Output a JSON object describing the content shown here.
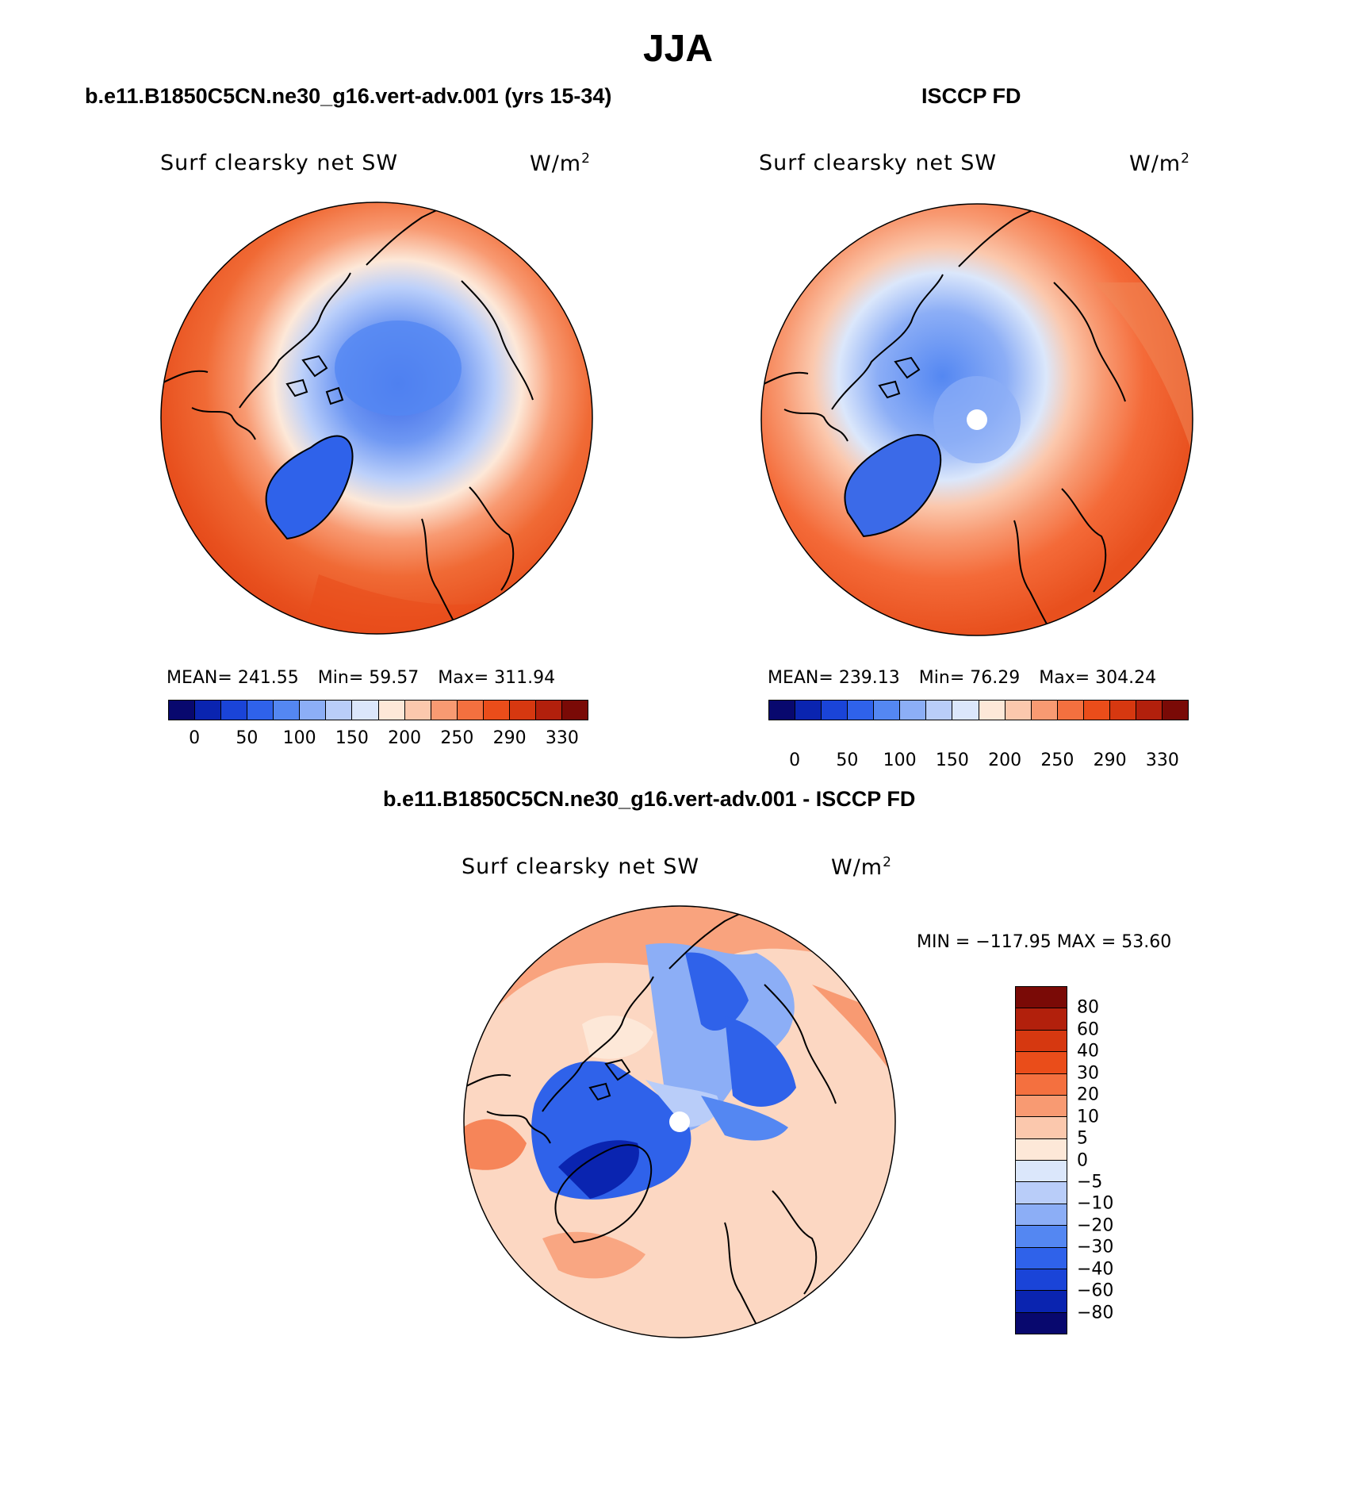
{
  "title": "JJA",
  "panels": {
    "model": {
      "title": "b.e11.B1850C5CN.ne30_g16.vert-adv.001 (yrs 15-34)",
      "variable": "Surf clearsky net SW",
      "units": "W/m",
      "units_exp": "2",
      "stats": {
        "mean": "MEAN= 241.55",
        "min": "Min=   59.57",
        "max": "Max= 311.94"
      },
      "colorbar_ticks": [
        "0",
        "50",
        "100",
        "150",
        "200",
        "250",
        "290",
        "330"
      ]
    },
    "obs": {
      "title": "ISCCP FD",
      "variable": "Surf clearsky net SW",
      "units": "W/m",
      "units_exp": "2",
      "stats": {
        "mean": "MEAN= 239.13",
        "min": "Min=   76.29",
        "max": "Max= 304.24"
      },
      "colorbar_ticks": [
        "0",
        "50",
        "100",
        "150",
        "200",
        "250",
        "290",
        "330"
      ]
    },
    "diff": {
      "title": "b.e11.B1850C5CN.ne30_g16.vert-adv.001 - ISCCP FD",
      "variable": "Surf clearsky net SW",
      "units": "W/m",
      "units_exp": "2",
      "stats": "MIN = −117.95 MAX =   53.60",
      "colorbar_ticks": [
        "80",
        "60",
        "40",
        "30",
        "20",
        "10",
        "5",
        "0",
        "−5",
        "−10",
        "−20",
        "−30",
        "−40",
        "−60",
        "−80"
      ]
    }
  },
  "colors": {
    "scale": [
      "#08086e",
      "#0a24b0",
      "#1a44d8",
      "#2f62ea",
      "#5487f2",
      "#8caef6",
      "#b9cdf9",
      "#dbe7fb",
      "#fde8d8",
      "#fbc8ad",
      "#f89a72",
      "#f4703f",
      "#ea4d1a",
      "#d63810",
      "#b2200c",
      "#7a0a06"
    ],
    "map_high": "#e8501e",
    "map_ocean_mid": "#f46a38",
    "map_mid": "#f8a07a",
    "map_low_ice": "#5a84ee",
    "map_greenland": "#3060e0",
    "diff_pos": "#f9a880",
    "diff_neg": "#2f58de"
  },
  "chart_data": {
    "type": "heatmap",
    "projection": "north polar stereographic",
    "season": "JJA",
    "variable": "Surf clearsky net SW",
    "units": "W/m^2",
    "panels": [
      {
        "name": "b.e11.B1850C5CN.ne30_g16.vert-adv.001 (yrs 15-34)",
        "mean": 241.55,
        "min": 59.57,
        "max": 311.94,
        "levels": [
          0,
          25,
          50,
          75,
          100,
          125,
          150,
          175,
          200,
          225,
          250,
          270,
          290,
          310,
          330
        ]
      },
      {
        "name": "ISCCP FD",
        "mean": 239.13,
        "min": 76.29,
        "max": 304.24,
        "levels": [
          0,
          25,
          50,
          75,
          100,
          125,
          150,
          175,
          200,
          225,
          250,
          270,
          290,
          310,
          330
        ]
      },
      {
        "name": "b.e11.B1850C5CN.ne30_g16.vert-adv.001 - ISCCP FD",
        "min": -117.95,
        "max": 53.6,
        "levels": [
          -80,
          -60,
          -40,
          -30,
          -20,
          -10,
          -5,
          0,
          5,
          10,
          20,
          30,
          40,
          60,
          80
        ]
      }
    ]
  }
}
